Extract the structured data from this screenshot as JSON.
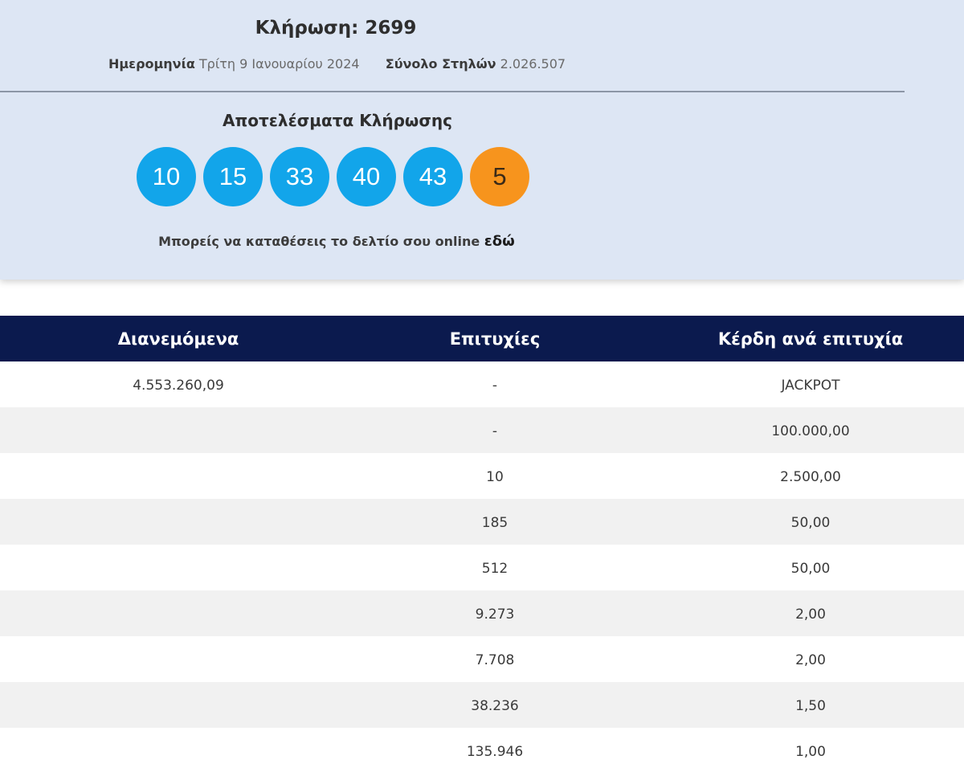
{
  "draw": {
    "title": "Κλήρωση: 2699",
    "date_label": "Ημερομηνία",
    "date_value": "Τρίτη 9 Ιανουαρίου 2024",
    "columns_label": "Σύνολο Στηλών",
    "columns_value": "2.026.507"
  },
  "results": {
    "title": "Αποτελέσματα Κλήρωσης",
    "numbers": [
      "10",
      "15",
      "33",
      "40",
      "43"
    ],
    "bonus": "5",
    "colors": {
      "main_ball": "#12a5ea",
      "bonus_ball": "#f7941d",
      "header_bg": "#0b1a4e"
    }
  },
  "online": {
    "text": "Μπορείς να καταθέσεις το δελτίο σου online",
    "link": "εδώ"
  },
  "table": {
    "headers": [
      "Διανεμόμενα",
      "Επιτυχίες",
      "Κέρδη ανά επιτυχία"
    ],
    "rows": [
      [
        "4.553.260,09",
        "-",
        "JACKPOT"
      ],
      [
        "",
        "-",
        "100.000,00"
      ],
      [
        "",
        "10",
        "2.500,00"
      ],
      [
        "",
        "185",
        "50,00"
      ],
      [
        "",
        "512",
        "50,00"
      ],
      [
        "",
        "9.273",
        "2,00"
      ],
      [
        "",
        "7.708",
        "2,00"
      ],
      [
        "",
        "38.236",
        "1,50"
      ],
      [
        "",
        "135.946",
        "1,00"
      ]
    ]
  }
}
